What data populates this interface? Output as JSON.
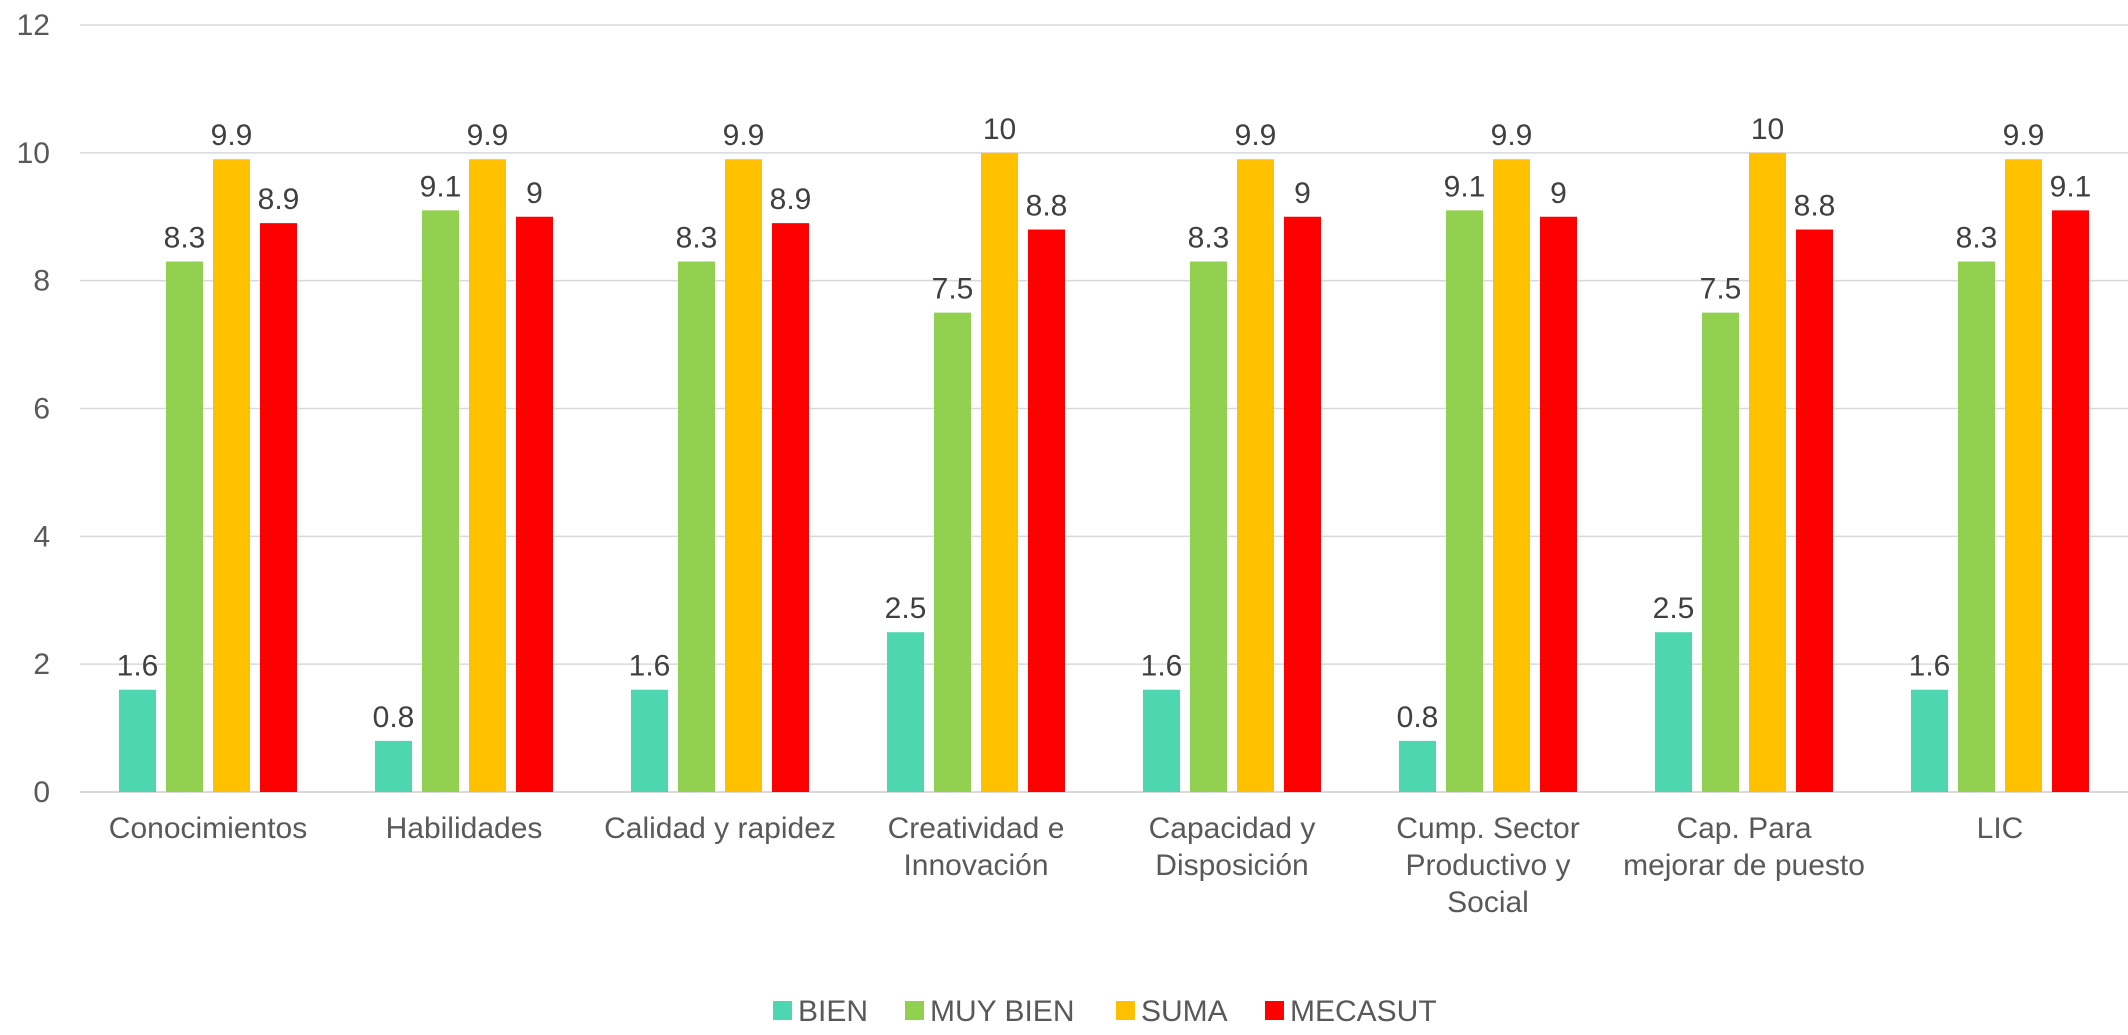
{
  "chart_data": {
    "type": "bar",
    "categories": [
      [
        "Conocimientos"
      ],
      [
        "Habilidades"
      ],
      [
        "Calidad y rapidez"
      ],
      [
        "Creatividad e",
        "Innovación"
      ],
      [
        "Capacidad y",
        "Disposición"
      ],
      [
        "Cump. Sector",
        "Productivo y",
        "Social"
      ],
      [
        "Cap. Para",
        "mejorar de puesto"
      ],
      [
        "LIC"
      ]
    ],
    "series": [
      {
        "name": "BIEN",
        "color": "#4dd6b0",
        "values": [
          1.6,
          0.8,
          1.6,
          2.5,
          1.6,
          0.8,
          2.5,
          1.6
        ]
      },
      {
        "name": "MUY BIEN",
        "color": "#92d050",
        "values": [
          8.3,
          9.1,
          8.3,
          7.5,
          8.3,
          9.1,
          7.5,
          8.3
        ]
      },
      {
        "name": "SUMA",
        "color": "#ffc000",
        "values": [
          9.9,
          9.9,
          9.9,
          10,
          9.9,
          9.9,
          10,
          9.9
        ]
      },
      {
        "name": "MECASUT",
        "color": "#ff0000",
        "values": [
          8.9,
          9,
          8.9,
          8.8,
          9,
          9,
          8.8,
          9.1
        ]
      }
    ],
    "yticks": [
      0,
      2,
      4,
      6,
      8,
      10,
      12
    ],
    "ylim": [
      0,
      12
    ],
    "grid": true,
    "legend_position": "bottom"
  }
}
